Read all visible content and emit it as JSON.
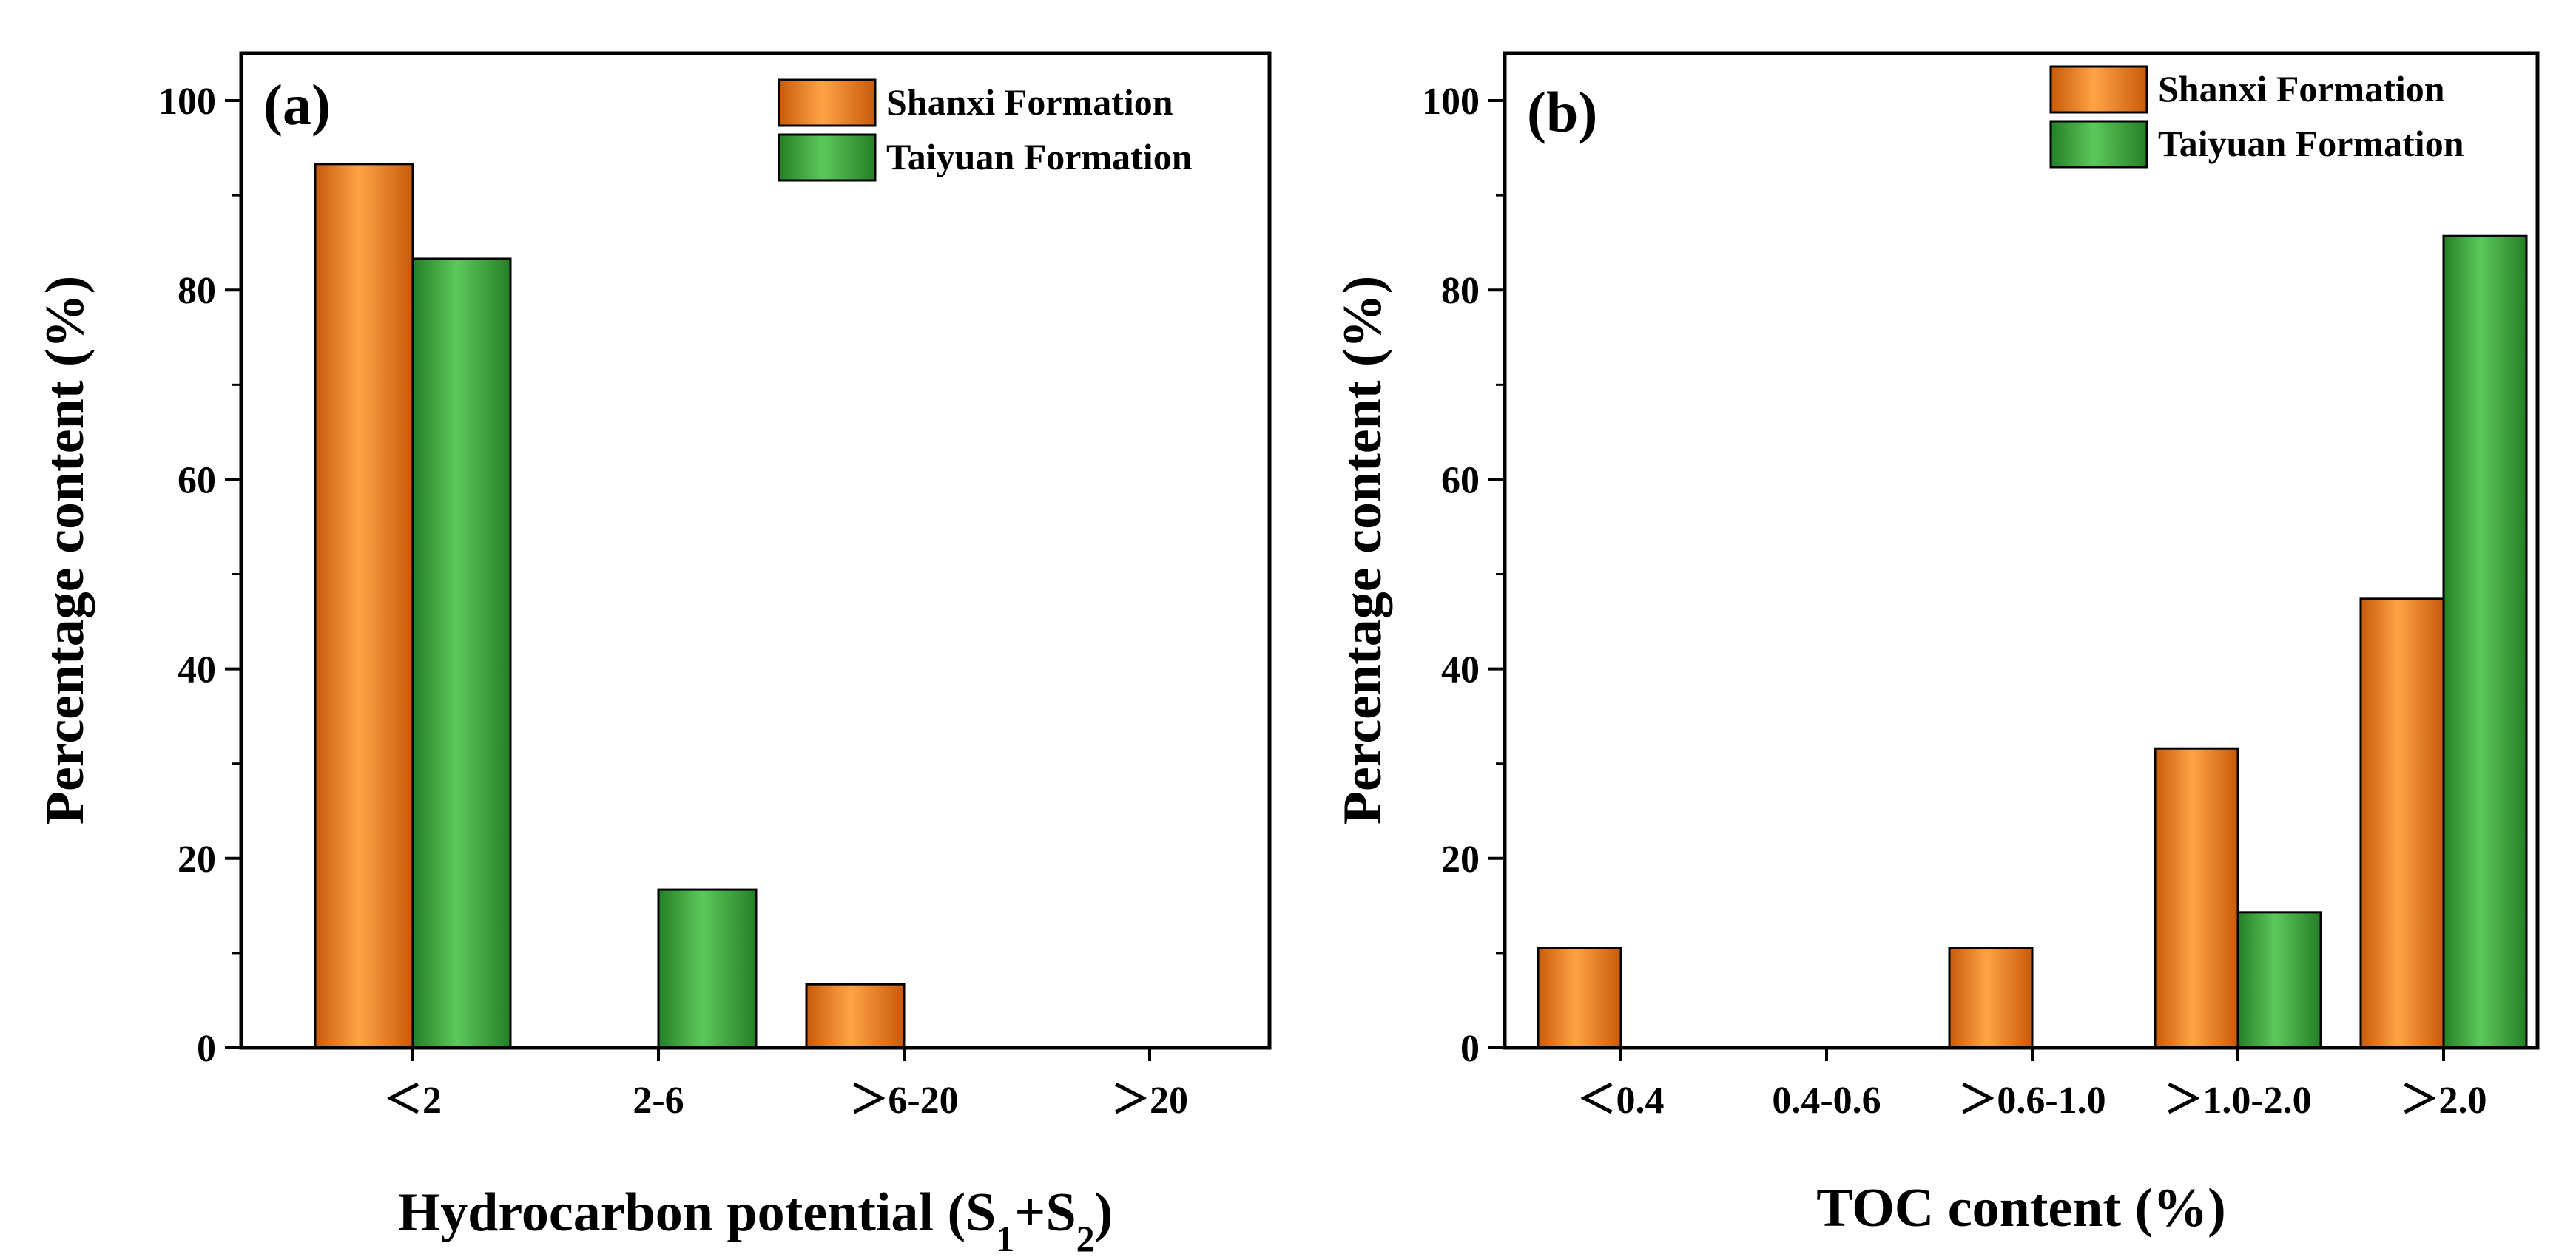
{
  "colors": {
    "shanxi": "#f07d1a",
    "shanxi_light": "#ffa347",
    "shanxi_dark": "#c85a0a",
    "taiyuan": "#3aa73a",
    "taiyuan_light": "#5cc85c",
    "taiyuan_dark": "#257f25",
    "axis": "#000000"
  },
  "chart_data": [
    {
      "type": "bar",
      "panel_label": "(a)",
      "title": "",
      "categories": [
        "＜2",
        "2-6",
        "＞6-20",
        "＞20"
      ],
      "series": [
        {
          "name": "Shanxi Formation",
          "values": [
            93.3,
            0,
            6.7,
            0
          ]
        },
        {
          "name": "Taiyuan Formation",
          "values": [
            83.3,
            16.7,
            0,
            0
          ]
        }
      ],
      "xlabel": {
        "main": "Hydrocarbon potential (S",
        "sub1": "1",
        "plus": "+S",
        "sub2": "2",
        "close": ")"
      },
      "ylabel": "Percentage content (%)",
      "ylim": [
        0,
        105
      ],
      "yticks": [
        "0",
        "20",
        "40",
        "60",
        "80",
        "100"
      ],
      "legend_position": "top-right",
      "grid": false
    },
    {
      "type": "bar",
      "panel_label": "(b)",
      "title": "",
      "categories": [
        "＜0.4",
        "0.4-0.6",
        "＞0.6-1.0",
        "＞1.0-2.0",
        "＞2.0"
      ],
      "series": [
        {
          "name": "Shanxi Formation",
          "values": [
            10.5,
            0,
            10.5,
            31.6,
            47.4
          ]
        },
        {
          "name": "Taiyuan Formation",
          "values": [
            0,
            0,
            0,
            14.3,
            85.7
          ]
        }
      ],
      "xlabel": "TOC content (%)",
      "ylabel": "Percentage content (%)",
      "ylim": [
        0,
        105
      ],
      "yticks": [
        "0",
        "20",
        "40",
        "60",
        "80",
        "100"
      ],
      "legend_position": "top-right",
      "grid": false
    }
  ]
}
